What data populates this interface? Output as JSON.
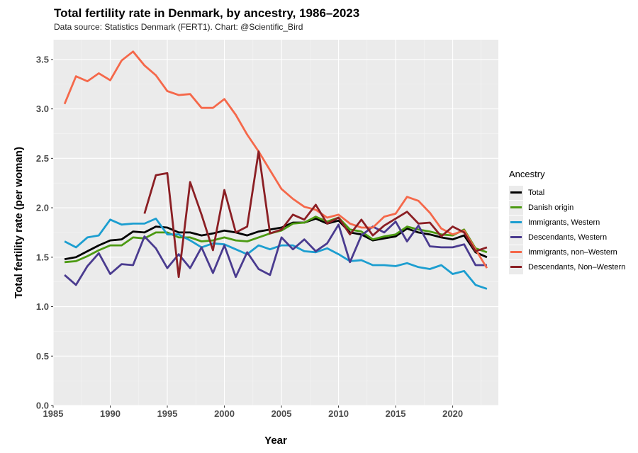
{
  "header": {
    "title": "Total fertility rate in Denmark, by ancestry, 1986–2023",
    "subtitle": "Data source: Statistics Denmark (FERT1). Chart: @Scientific_Bird"
  },
  "chart_data": {
    "type": "line",
    "title": "Total fertility rate in Denmark, by ancestry, 1986–2023",
    "xlabel": "Year",
    "ylabel": "Total fertility rate (per woman)",
    "xlim": [
      1985,
      2024
    ],
    "ylim": [
      0,
      3.7
    ],
    "xticks": [
      1985,
      1990,
      1995,
      2000,
      2005,
      2010,
      2015,
      2020
    ],
    "xtick_labels": [
      "1985",
      "1990",
      "1995",
      "2000",
      "2005",
      "2010",
      "2015",
      "2020"
    ],
    "yticks": [
      0,
      0.5,
      1,
      1.5,
      2,
      2.5,
      3,
      3.5
    ],
    "ytick_labels": [
      "0.0",
      "0.5",
      "1.0",
      "1.5",
      "2.0",
      "2.5",
      "3.0",
      "3.5"
    ],
    "grid": true,
    "legend_title": "Ancestry",
    "legend_position": "right",
    "series": [
      {
        "name": "Total",
        "color": "#000000",
        "start_year": 1986,
        "values": [
          1.48,
          1.5,
          1.56,
          1.62,
          1.67,
          1.68,
          1.76,
          1.75,
          1.81,
          1.8,
          1.75,
          1.75,
          1.72,
          1.74,
          1.77,
          1.75,
          1.72,
          1.76,
          1.78,
          1.8,
          1.85,
          1.85,
          1.89,
          1.84,
          1.87,
          1.75,
          1.73,
          1.67,
          1.69,
          1.71,
          1.79,
          1.75,
          1.73,
          1.7,
          1.68,
          1.72,
          1.55,
          1.5
        ]
      },
      {
        "name": "Danish origin",
        "color": "#4c9a12",
        "start_year": 1986,
        "values": [
          1.45,
          1.46,
          1.51,
          1.57,
          1.62,
          1.62,
          1.7,
          1.69,
          1.75,
          1.75,
          1.7,
          1.7,
          1.66,
          1.67,
          1.7,
          1.67,
          1.66,
          1.7,
          1.74,
          1.77,
          1.84,
          1.85,
          1.91,
          1.86,
          1.9,
          1.78,
          1.76,
          1.68,
          1.71,
          1.73,
          1.81,
          1.78,
          1.76,
          1.73,
          1.72,
          1.78,
          1.59,
          1.55
        ]
      },
      {
        "name": "Immigrants, Western",
        "color": "#1c9ed0",
        "start_year": 1986,
        "values": [
          1.66,
          1.6,
          1.7,
          1.72,
          1.88,
          1.83,
          1.84,
          1.84,
          1.89,
          1.73,
          1.73,
          1.67,
          1.6,
          1.64,
          1.63,
          1.58,
          1.53,
          1.62,
          1.58,
          1.62,
          1.62,
          1.56,
          1.55,
          1.59,
          1.53,
          1.46,
          1.47,
          1.42,
          1.42,
          1.41,
          1.44,
          1.4,
          1.38,
          1.42,
          1.33,
          1.36,
          1.22,
          1.18
        ]
      },
      {
        "name": "Descendants, Western",
        "color": "#4a3b8f",
        "start_year": 1986,
        "values": [
          1.32,
          1.22,
          1.41,
          1.54,
          1.33,
          1.43,
          1.42,
          1.71,
          1.59,
          1.39,
          1.53,
          1.39,
          1.6,
          1.34,
          1.62,
          1.3,
          1.55,
          1.38,
          1.32,
          1.7,
          1.58,
          1.68,
          1.56,
          1.64,
          1.83,
          1.45,
          1.72,
          1.81,
          1.75,
          1.86,
          1.66,
          1.82,
          1.61,
          1.6,
          1.6,
          1.63,
          1.42,
          1.42
        ]
      },
      {
        "name": "Immigrants, non-Western",
        "color": "#f5684a",
        "start_year": 1986,
        "values": [
          3.05,
          3.33,
          3.28,
          3.36,
          3.29,
          3.49,
          3.58,
          3.44,
          3.34,
          3.18,
          3.14,
          3.15,
          3.01,
          3.01,
          3.1,
          2.94,
          2.74,
          2.57,
          2.38,
          2.19,
          2.09,
          2.01,
          1.98,
          1.9,
          1.93,
          1.84,
          1.8,
          1.8,
          1.91,
          1.94,
          2.11,
          2.07,
          1.95,
          1.79,
          1.73,
          1.77,
          1.58,
          1.39
        ]
      },
      {
        "name": "Descendants, Non-Western",
        "color": "#8b1f24",
        "start_year": 1993,
        "values": [
          1.94,
          2.33,
          2.35,
          1.3,
          2.26,
          1.93,
          1.57,
          2.18,
          1.75,
          1.81,
          2.57,
          1.74,
          1.78,
          1.93,
          1.88,
          2.03,
          1.84,
          1.9,
          1.73,
          1.88,
          1.72,
          1.82,
          1.89,
          1.96,
          1.84,
          1.85,
          1.71,
          1.81,
          1.75,
          1.56,
          1.6
        ]
      }
    ]
  }
}
